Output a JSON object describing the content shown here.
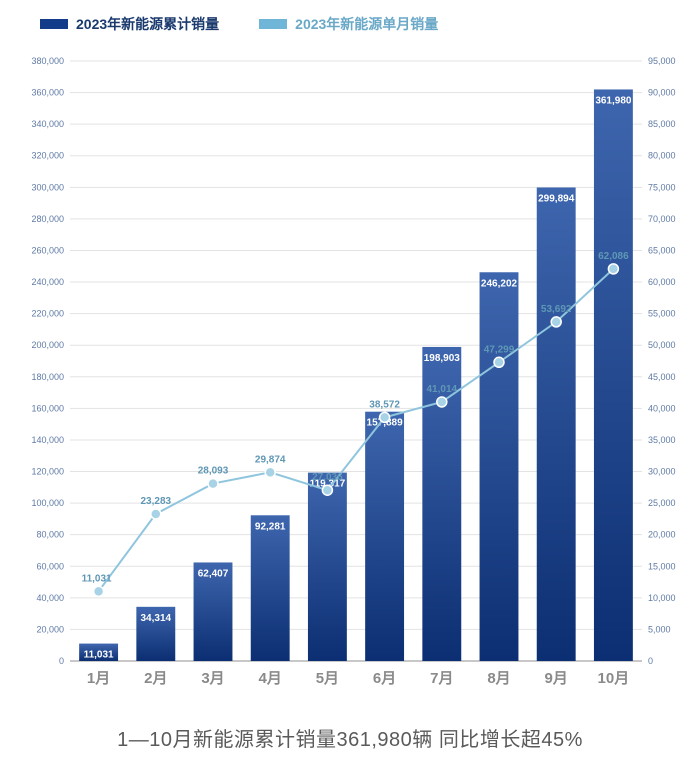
{
  "legend": {
    "series1": {
      "label": "2023年新能源累计销量",
      "color": "#123b8a",
      "text_color": "#1a3a6e"
    },
    "series2": {
      "label": "2023年新能源单月销量",
      "color": "#6fb5d8",
      "text_color": "#6aa8c8"
    }
  },
  "chart": {
    "type": "bar+line",
    "categories": [
      "1月",
      "2月",
      "3月",
      "4月",
      "5月",
      "6月",
      "7月",
      "8月",
      "9月",
      "10月"
    ],
    "bars": {
      "values": [
        11031,
        34314,
        62407,
        92281,
        119317,
        157889,
        198903,
        246202,
        299894,
        361980
      ],
      "labels": [
        "11,031",
        "34,314",
        "62,407",
        "92,281",
        "119,317",
        "157,889",
        "198,903",
        "246,202",
        "299,894",
        "361,980"
      ],
      "colors_top": [
        "#3e66ae",
        "#3e66ae",
        "#3e66ae",
        "#3e66ae",
        "#3e66ae",
        "#3e66ae",
        "#3e66ae",
        "#3e66ae",
        "#3e66ae",
        "#3e66ae"
      ],
      "colors_bottom": [
        "#0c2e72",
        "#0c2e72",
        "#0c2e72",
        "#0c2e72",
        "#0c2e72",
        "#0c2e72",
        "#0c2e72",
        "#0c2e72",
        "#0c2e72",
        "#0c2e72"
      ],
      "label_color": "#ffffff",
      "label_fontsize": 10,
      "bar_width_ratio": 0.68
    },
    "line": {
      "values": [
        11031,
        23283,
        28093,
        29874,
        27036,
        38572,
        41014,
        47299,
        53692,
        62086
      ],
      "labels": [
        "11,031",
        "23,283",
        "28,093",
        "29,874",
        "27,036",
        "38,572",
        "41,014",
        "47,299",
        "53,692",
        "62,086"
      ],
      "stroke": "#8fc5dd",
      "stroke_width": 2,
      "marker_fill": "#a8d2e6",
      "marker_stroke": "#ffffff",
      "marker_radius": 5,
      "label_color": "#5f97b6",
      "label_fontsize": 10
    },
    "left_axis": {
      "min": 0,
      "max": 380000,
      "tick_step": 20000,
      "tick_fontsize": 9,
      "tick_color": "#5f7aa5"
    },
    "right_axis": {
      "min": 0,
      "max": 95000,
      "tick_step": 5000,
      "tick_fontsize": 9,
      "tick_color": "#5f7aa5"
    },
    "x_axis": {
      "tick_fontsize": 15,
      "tick_color": "#8a8a8a",
      "tick_weight": 600
    },
    "grid": {
      "color": "#e3e3e3",
      "baseline_color": "#b5b5b5"
    },
    "background": "#ffffff"
  },
  "caption": "1—10月新能源累计销量361,980辆 同比增长超45%"
}
